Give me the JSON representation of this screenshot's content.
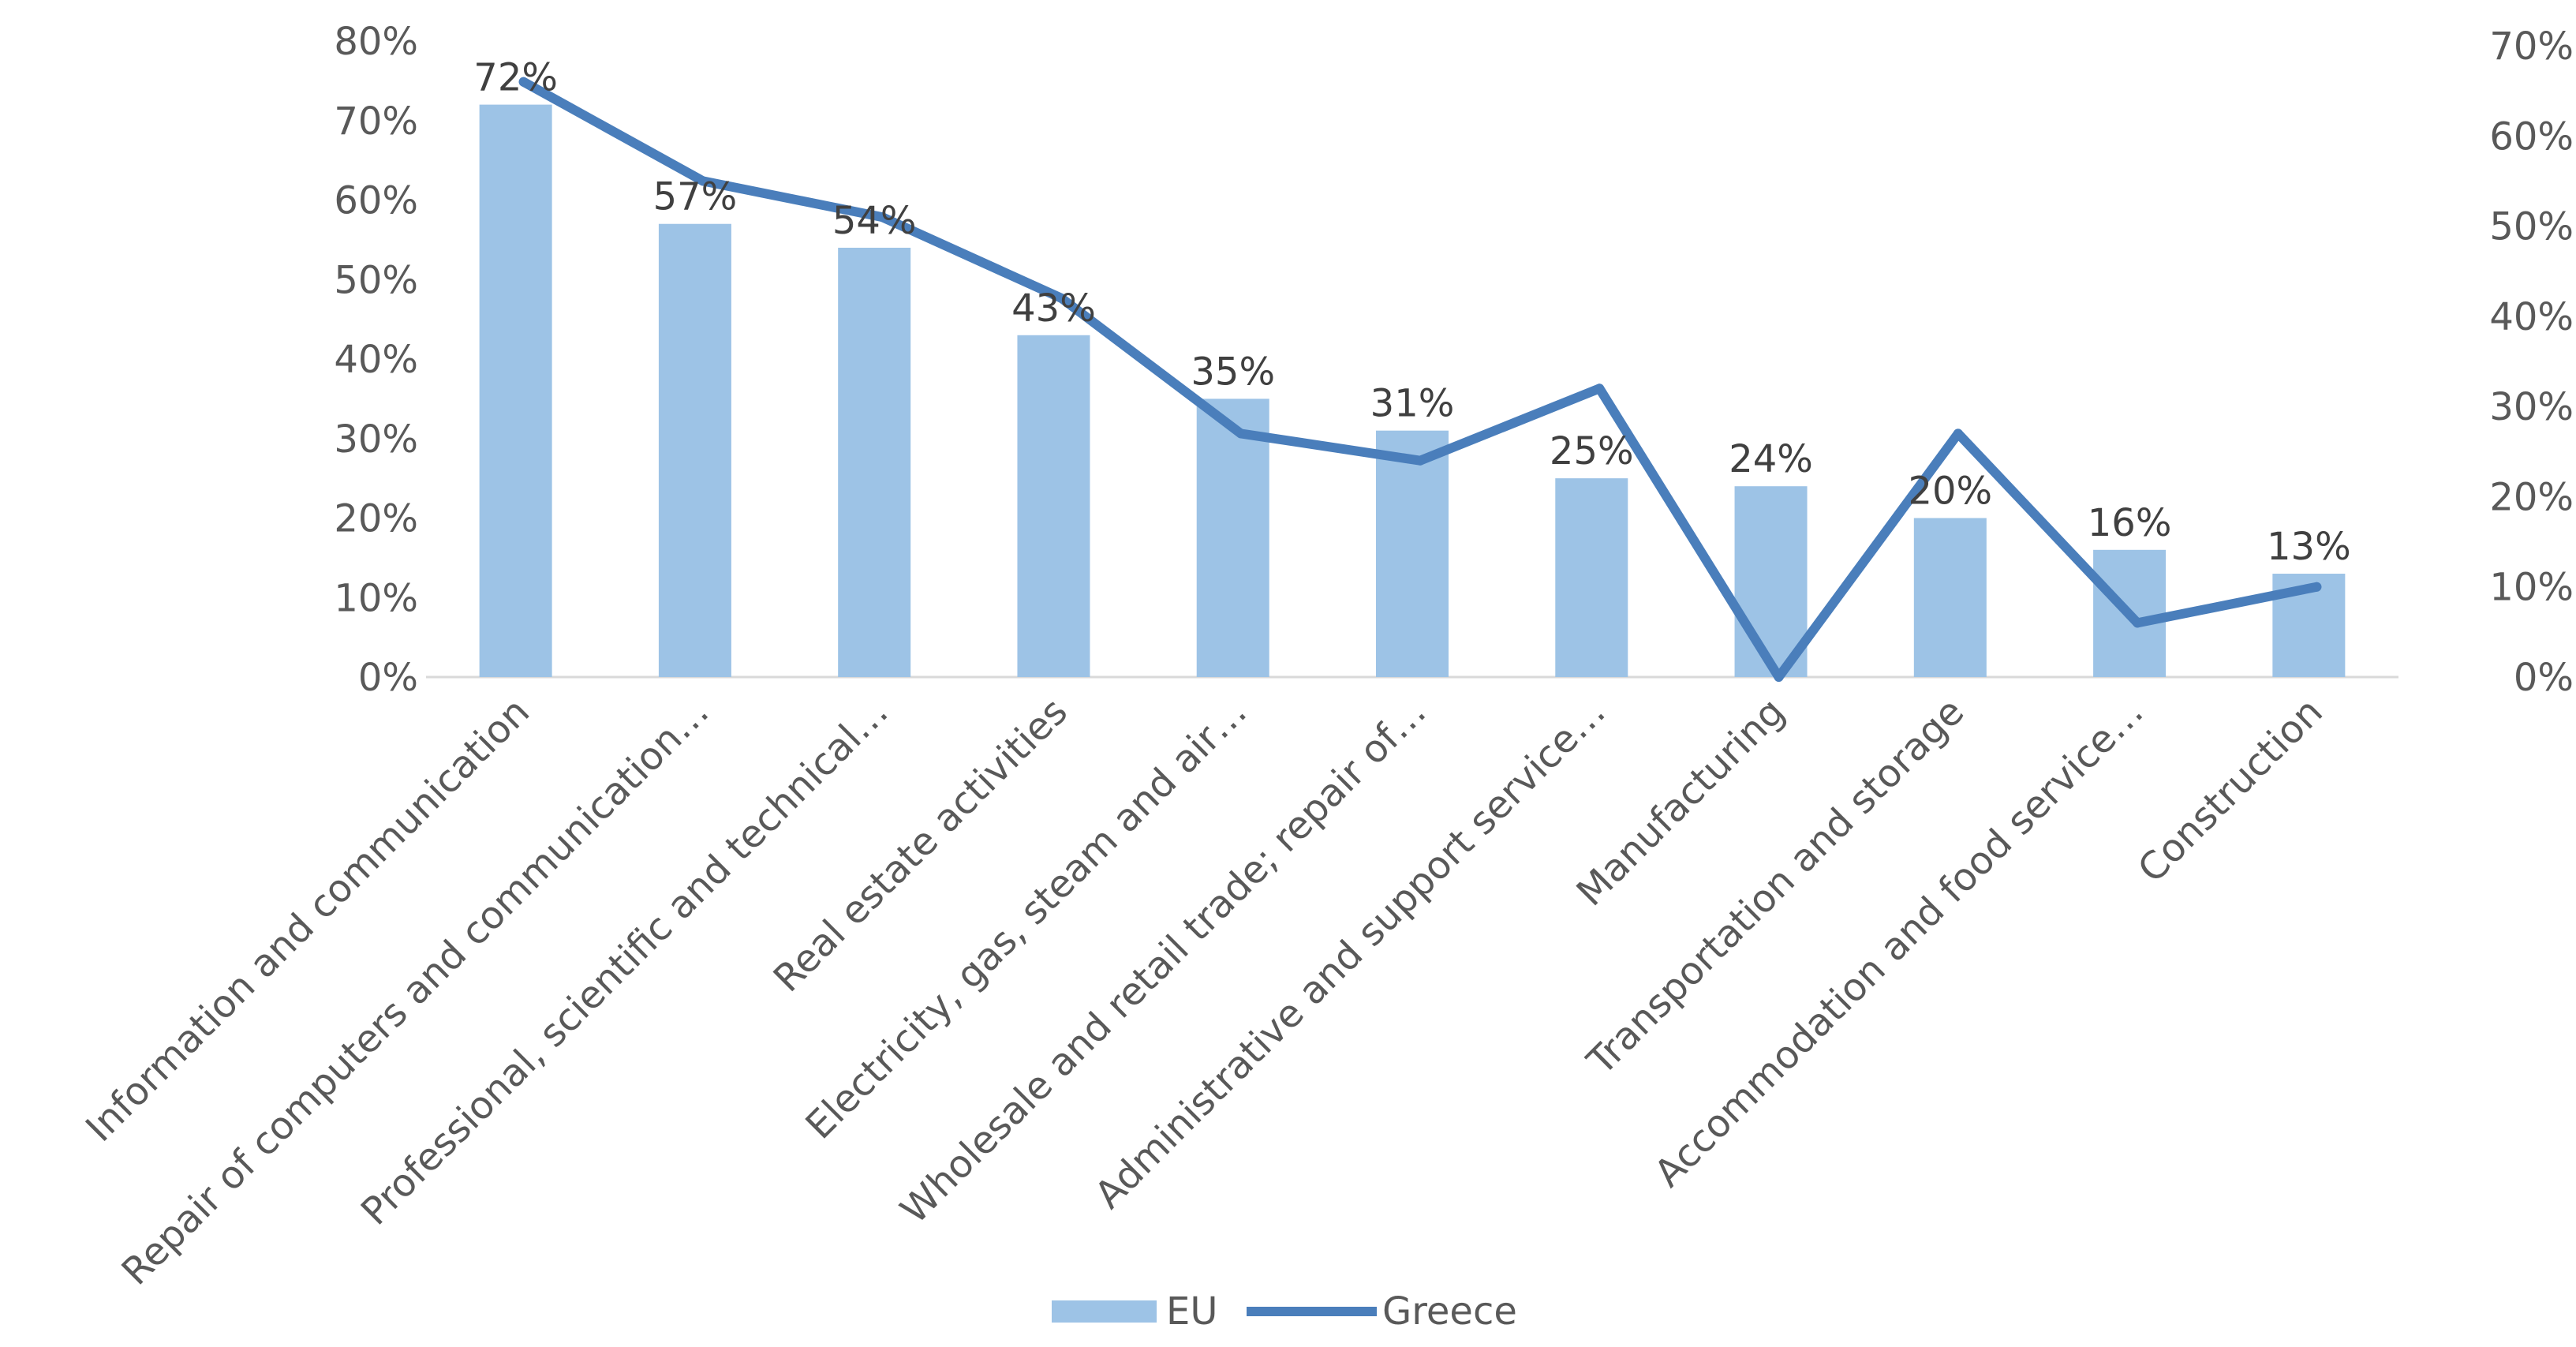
{
  "chart_data": {
    "type": "bar+line",
    "title": "",
    "xlabel": "",
    "ylabel": "",
    "categories": [
      "Information and communication",
      "Repair of computers and communication…",
      "Professional, scientific and technical…",
      "Real estate activities",
      "Electricity, gas, steam and air…",
      "Wholesale and retail trade; repair of…",
      "Administrative and support service…",
      "Manufacturing",
      "Transportation and storage",
      "Accommodation and food service…",
      "Construction"
    ],
    "series": [
      {
        "name": "EU",
        "kind": "bar",
        "axis": "left",
        "color": "#9DC3E6",
        "values": [
          72,
          57,
          54,
          43,
          35,
          31,
          25,
          24,
          20,
          16,
          13
        ],
        "labels": [
          "72%",
          "57%",
          "54%",
          "43%",
          "35%",
          "31%",
          "25%",
          "24%",
          "20%",
          "16%",
          "13%"
        ]
      },
      {
        "name": "Greece",
        "kind": "line",
        "axis": "right",
        "color": "#4A7EBB",
        "values": [
          66,
          55,
          51,
          42,
          27,
          24,
          32,
          0,
          27,
          6,
          10
        ]
      }
    ],
    "y_left": {
      "ylim": [
        0,
        80
      ],
      "ticks": [
        0,
        10,
        20,
        30,
        40,
        50,
        60,
        70,
        80
      ],
      "tick_labels": [
        "0%",
        "10%",
        "20%",
        "30%",
        "40%",
        "50%",
        "60%",
        "70%",
        "80%"
      ]
    },
    "y_right": {
      "ylim": [
        0,
        70
      ],
      "ticks": [
        0,
        10,
        20,
        30,
        40,
        50,
        60,
        70
      ],
      "tick_labels": [
        "0%",
        "10%",
        "20%",
        "30%",
        "40%",
        "50%",
        "60%",
        "70%"
      ]
    },
    "grid": false,
    "legend": {
      "position": "bottom",
      "entries": [
        "EU",
        "Greece"
      ]
    }
  }
}
